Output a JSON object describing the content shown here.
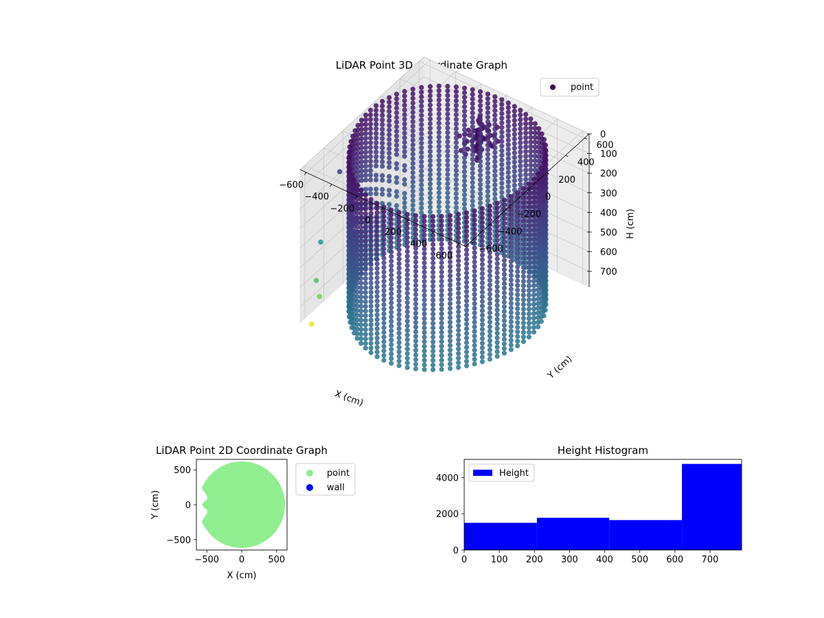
{
  "figure": {
    "background": "#ffffff"
  },
  "chart_data": [
    {
      "type": "scatter",
      "projection": "3d",
      "title": "LiDAR Point 3D Coordinate Graph",
      "xlabel": "X (cm)",
      "ylabel": "Y (cm)",
      "zlabel": "H (cm)",
      "xlim": [
        -650,
        650
      ],
      "ylim": [
        -650,
        650
      ],
      "zlim": [
        0,
        780
      ],
      "z_inverted": true,
      "xticks": [
        "−600",
        "−400",
        "−200",
        "0",
        "200",
        "400",
        "600"
      ],
      "yticks": [
        "−600",
        "−400",
        "−200",
        "0",
        "200",
        "400",
        "600"
      ],
      "zticks": [
        "0",
        "100",
        "200",
        "300",
        "400",
        "500",
        "600",
        "700"
      ],
      "grid": true,
      "legend": {
        "position": "top-right",
        "entries": [
          {
            "label": "point",
            "color": "#440154"
          }
        ]
      },
      "colormap": "viridis",
      "series": [
        {
          "name": "point",
          "shape": "cylindrical wall point cloud",
          "radius_cm": 620,
          "height_range_cm": [
            0,
            780
          ],
          "outliers": [
            {
              "x": -600,
              "y": -300,
              "h": 150
            },
            {
              "x": -600,
              "y": -500,
              "h": 420
            },
            {
              "x": -560,
              "y": -600,
              "h": 560
            },
            {
              "x": -520,
              "y": -620,
              "h": 620
            },
            {
              "x": -560,
              "y": -650,
              "h": 760
            }
          ]
        }
      ]
    },
    {
      "type": "scatter",
      "title": "LiDAR Point 2D Coordinate Graph",
      "xlabel": "X (cm)",
      "ylabel": "Y (cm)",
      "xlim": [
        -650,
        650
      ],
      "ylim": [
        -650,
        650
      ],
      "xticks": [
        -500,
        0,
        500
      ],
      "yticks": [
        -500,
        0,
        500
      ],
      "xtick_labels": [
        "−500",
        "0",
        "500"
      ],
      "ytick_labels": [
        "−500",
        "0",
        "500"
      ],
      "legend": {
        "position": "outside-right",
        "entries": [
          {
            "label": "point",
            "color": "#90ee90"
          },
          {
            "label": "wall",
            "color": "#0000ff"
          }
        ]
      },
      "series": [
        {
          "name": "point",
          "color": "#90ee90",
          "shape": "filled disc",
          "center": [
            0,
            0
          ],
          "radius": 620
        }
      ]
    },
    {
      "type": "bar",
      "title": "Height Histogram",
      "xlim": [
        0,
        790
      ],
      "ylim": [
        0,
        5000
      ],
      "xticks": [
        0,
        100,
        200,
        300,
        400,
        500,
        600,
        700
      ],
      "yticks": [
        0,
        2000,
        4000
      ],
      "bins": [
        {
          "start": 0,
          "end": 207,
          "value": 1500
        },
        {
          "start": 207,
          "end": 413,
          "value": 1780
        },
        {
          "start": 413,
          "end": 620,
          "value": 1650
        },
        {
          "start": 620,
          "end": 790,
          "value": 4750
        }
      ],
      "color": "#0000ff",
      "legend": {
        "position": "top-left",
        "entries": [
          {
            "label": "Height",
            "color": "#0000ff"
          }
        ]
      }
    }
  ]
}
